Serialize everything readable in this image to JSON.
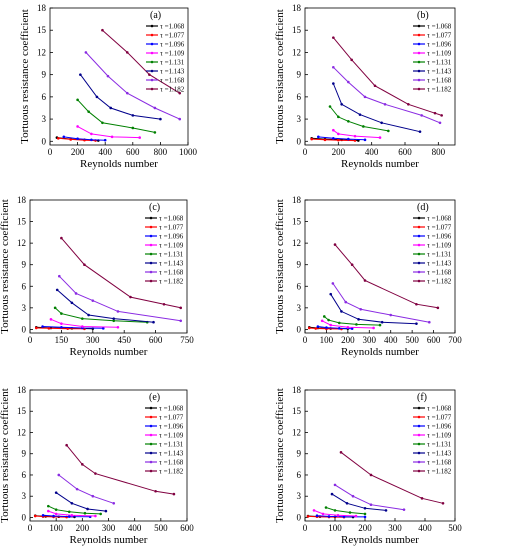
{
  "legend": {
    "prefix": "τ =",
    "series": [
      "1.068",
      "1.077",
      "1.096",
      "1.109",
      "1.131",
      "1.143",
      "1.168",
      "1.182"
    ],
    "colors": [
      "#000000",
      "#ff0000",
      "#0000ff",
      "#ff00ff",
      "#008000",
      "#00008b",
      "#8a2be2",
      "#800040"
    ]
  },
  "chart_data": [
    {
      "type": "line",
      "panel_label": "(a)",
      "xlabel": "Reynolds number",
      "ylabel": "Tortuous resistance coefficient",
      "xlim": [
        0,
        1000
      ],
      "ylim": [
        -0.5,
        18
      ],
      "xticks": [
        0,
        200,
        400,
        600,
        800,
        1000
      ],
      "yticks": [
        0,
        3,
        6,
        9,
        12,
        15,
        18
      ],
      "legend_position": "top-right",
      "series": [
        {
          "name": "τ =1.068",
          "color": "#000000",
          "x": [
            50,
            150,
            250,
            350
          ],
          "y": [
            0.5,
            0.3,
            0.2,
            0.1
          ]
        },
        {
          "name": "τ =1.077",
          "color": "#ff0000",
          "x": [
            60,
            150,
            250,
            330
          ],
          "y": [
            0.4,
            0.25,
            0.15,
            0.1
          ]
        },
        {
          "name": "τ =1.096",
          "color": "#0000ff",
          "x": [
            100,
            200,
            300,
            400
          ],
          "y": [
            0.6,
            0.35,
            0.2,
            0.15
          ]
        },
        {
          "name": "τ =1.109",
          "color": "#ff00ff",
          "x": [
            200,
            300,
            450,
            650
          ],
          "y": [
            2.0,
            1.0,
            0.6,
            0.5
          ]
        },
        {
          "name": "τ =1.131",
          "color": "#008000",
          "x": [
            200,
            280,
            380,
            600,
            760
          ],
          "y": [
            5.6,
            4.0,
            2.5,
            1.8,
            1.2
          ]
        },
        {
          "name": "τ =1.143",
          "color": "#00008b",
          "x": [
            220,
            340,
            440,
            600,
            800
          ],
          "y": [
            9.0,
            6.0,
            4.5,
            3.5,
            3.0
          ]
        },
        {
          "name": "τ =1.168",
          "color": "#8a2be2",
          "x": [
            260,
            420,
            560,
            760,
            940
          ],
          "y": [
            12.0,
            8.8,
            6.5,
            4.5,
            3.0
          ]
        },
        {
          "name": "τ =1.182",
          "color": "#800040",
          "x": [
            380,
            560,
            720,
            940
          ],
          "y": [
            15.0,
            12.0,
            9.0,
            6.5
          ]
        }
      ]
    },
    {
      "type": "line",
      "panel_label": "(b)",
      "xlabel": "Reynolds number",
      "ylabel": "Tortuous resistance coefficient",
      "xlim": [
        0,
        900
      ],
      "ylim": [
        -0.5,
        18
      ],
      "xticks": [
        0,
        200,
        400,
        600,
        800
      ],
      "yticks": [
        0,
        3,
        6,
        9,
        12,
        15,
        18
      ],
      "legend_position": "top-right",
      "series": [
        {
          "name": "τ =1.068",
          "color": "#000000",
          "x": [
            40,
            120,
            220,
            320
          ],
          "y": [
            0.4,
            0.3,
            0.2,
            0.1
          ]
        },
        {
          "name": "τ =1.077",
          "color": "#ff0000",
          "x": [
            40,
            120,
            200,
            300
          ],
          "y": [
            0.3,
            0.2,
            0.15,
            0.1
          ]
        },
        {
          "name": "τ =1.096",
          "color": "#0000ff",
          "x": [
            80,
            170,
            260,
            360
          ],
          "y": [
            0.6,
            0.4,
            0.3,
            0.2
          ]
        },
        {
          "name": "τ =1.109",
          "color": "#ff00ff",
          "x": [
            170,
            200,
            300,
            450
          ],
          "y": [
            1.5,
            1.0,
            0.7,
            0.5
          ]
        },
        {
          "name": "τ =1.131",
          "color": "#008000",
          "x": [
            150,
            200,
            260,
            350,
            500
          ],
          "y": [
            4.7,
            3.3,
            2.7,
            2.0,
            1.4
          ]
        },
        {
          "name": "τ =1.143",
          "color": "#00008b",
          "x": [
            170,
            220,
            330,
            460,
            690
          ],
          "y": [
            7.8,
            5.0,
            3.6,
            2.5,
            1.3
          ]
        },
        {
          "name": "τ =1.168",
          "color": "#8a2be2",
          "x": [
            170,
            260,
            360,
            480,
            700,
            810
          ],
          "y": [
            10.0,
            8.0,
            6.0,
            5.0,
            3.5,
            2.5
          ]
        },
        {
          "name": "τ =1.182",
          "color": "#800040",
          "x": [
            170,
            280,
            420,
            620,
            780,
            820
          ],
          "y": [
            14.0,
            11.0,
            7.5,
            5.0,
            3.8,
            3.5
          ]
        }
      ]
    },
    {
      "type": "line",
      "panel_label": "(c)",
      "xlabel": "Reynolds number",
      "ylabel": "Tortuous resistance coefficient",
      "xlim": [
        0,
        750
      ],
      "ylim": [
        -0.5,
        18
      ],
      "xticks": [
        0,
        150,
        300,
        450,
        600,
        750
      ],
      "yticks": [
        0,
        3,
        6,
        9,
        12,
        15,
        18
      ],
      "legend_position": "top-right",
      "series": [
        {
          "name": "τ =1.068",
          "color": "#000000",
          "x": [
            30,
            100,
            200,
            300
          ],
          "y": [
            0.3,
            0.2,
            0.15,
            0.1
          ]
        },
        {
          "name": "τ =1.077",
          "color": "#ff0000",
          "x": [
            30,
            90,
            180,
            260
          ],
          "y": [
            0.2,
            0.15,
            0.1,
            0.08
          ]
        },
        {
          "name": "τ =1.096",
          "color": "#0000ff",
          "x": [
            60,
            150,
            250,
            350
          ],
          "y": [
            0.4,
            0.3,
            0.2,
            0.15
          ]
        },
        {
          "name": "τ =1.109",
          "color": "#ff00ff",
          "x": [
            100,
            150,
            250,
            420
          ],
          "y": [
            1.4,
            0.8,
            0.4,
            0.3
          ]
        },
        {
          "name": "τ =1.131",
          "color": "#008000",
          "x": [
            120,
            150,
            250,
            400,
            560
          ],
          "y": [
            3.0,
            2.2,
            1.5,
            1.2,
            1.0
          ]
        },
        {
          "name": "τ =1.143",
          "color": "#00008b",
          "x": [
            130,
            200,
            280,
            400,
            590
          ],
          "y": [
            5.5,
            3.7,
            2.0,
            1.5,
            1.0
          ]
        },
        {
          "name": "τ =1.168",
          "color": "#8a2be2",
          "x": [
            140,
            220,
            300,
            420,
            720
          ],
          "y": [
            7.4,
            5.0,
            4.0,
            2.5,
            1.2
          ]
        },
        {
          "name": "τ =1.182",
          "color": "#800040",
          "x": [
            150,
            260,
            480,
            640,
            720
          ],
          "y": [
            12.7,
            9.0,
            4.5,
            3.5,
            3.0
          ]
        }
      ]
    },
    {
      "type": "line",
      "panel_label": "(d)",
      "xlabel": "Reynolds number",
      "ylabel": "Tortuous resistance coefficient",
      "xlim": [
        0,
        700
      ],
      "ylim": [
        -0.5,
        18
      ],
      "xticks": [
        0,
        100,
        200,
        300,
        400,
        500,
        600,
        700
      ],
      "yticks": [
        0,
        3,
        6,
        9,
        12,
        15,
        18
      ],
      "legend_position": "top-right",
      "series": [
        {
          "name": "τ =1.068",
          "color": "#000000",
          "x": [
            20,
            60,
            120,
            200
          ],
          "y": [
            0.3,
            0.2,
            0.12,
            0.1
          ]
        },
        {
          "name": "τ =1.077",
          "color": "#ff0000",
          "x": [
            20,
            50,
            100,
            170
          ],
          "y": [
            0.2,
            0.12,
            0.08,
            0.05
          ]
        },
        {
          "name": "τ =1.096",
          "color": "#0000ff",
          "x": [
            60,
            100,
            160,
            220
          ],
          "y": [
            0.4,
            0.25,
            0.15,
            0.1
          ]
        },
        {
          "name": "τ =1.109",
          "color": "#ff00ff",
          "x": [
            80,
            120,
            200,
            320
          ],
          "y": [
            1.2,
            0.6,
            0.3,
            0.2
          ]
        },
        {
          "name": "τ =1.131",
          "color": "#008000",
          "x": [
            90,
            110,
            160,
            240,
            350
          ],
          "y": [
            1.8,
            1.3,
            0.9,
            0.7,
            0.6
          ]
        },
        {
          "name": "τ =1.143",
          "color": "#00008b",
          "x": [
            120,
            170,
            250,
            360,
            520
          ],
          "y": [
            4.9,
            2.5,
            1.4,
            1.0,
            0.8
          ]
        },
        {
          "name": "τ =1.168",
          "color": "#8a2be2",
          "x": [
            130,
            190,
            260,
            400,
            580
          ],
          "y": [
            6.4,
            3.8,
            2.8,
            2.0,
            1.0
          ]
        },
        {
          "name": "τ =1.182",
          "color": "#800040",
          "x": [
            140,
            220,
            280,
            520,
            620
          ],
          "y": [
            11.8,
            9.0,
            6.8,
            3.5,
            3.0
          ]
        }
      ]
    },
    {
      "type": "line",
      "panel_label": "(e)",
      "xlabel": "Reynolds number",
      "ylabel": "Tortuous resistance coefficient",
      "xlim": [
        0,
        600
      ],
      "ylim": [
        -0.5,
        18
      ],
      "xticks": [
        0,
        100,
        200,
        300,
        400,
        500,
        600
      ],
      "yticks": [
        0,
        3,
        6,
        9,
        12,
        15,
        18
      ],
      "legend_position": "top-right",
      "series": [
        {
          "name": "τ =1.068",
          "color": "#000000",
          "x": [
            20,
            60,
            110,
            170
          ],
          "y": [
            0.25,
            0.15,
            0.1,
            0.08
          ]
        },
        {
          "name": "τ =1.077",
          "color": "#ff0000",
          "x": [
            20,
            50,
            90,
            140
          ],
          "y": [
            0.2,
            0.12,
            0.08,
            0.05
          ]
        },
        {
          "name": "τ =1.096",
          "color": "#0000ff",
          "x": [
            50,
            90,
            150,
            230
          ],
          "y": [
            0.3,
            0.2,
            0.12,
            0.1
          ]
        },
        {
          "name": "τ =1.109",
          "color": "#ff00ff",
          "x": [
            70,
            100,
            160,
            250
          ],
          "y": [
            0.9,
            0.5,
            0.3,
            0.2
          ]
        },
        {
          "name": "τ =1.131",
          "color": "#008000",
          "x": [
            70,
            100,
            150,
            210,
            270
          ],
          "y": [
            1.6,
            1.1,
            0.8,
            0.6,
            0.5
          ]
        },
        {
          "name": "τ =1.143",
          "color": "#00008b",
          "x": [
            100,
            160,
            220,
            290
          ],
          "y": [
            3.5,
            2.0,
            1.2,
            0.9
          ]
        },
        {
          "name": "τ =1.168",
          "color": "#8a2be2",
          "x": [
            110,
            180,
            240,
            320
          ],
          "y": [
            6.0,
            4.0,
            3.0,
            2.0
          ]
        },
        {
          "name": "τ =1.182",
          "color": "#800040",
          "x": [
            140,
            200,
            250,
            480,
            550
          ],
          "y": [
            10.2,
            7.5,
            6.2,
            3.7,
            3.3
          ]
        }
      ]
    },
    {
      "type": "line",
      "panel_label": "(f)",
      "xlabel": "Reynolds number",
      "ylabel": "Tortuous resistance coefficient",
      "xlim": [
        0,
        500
      ],
      "ylim": [
        -0.5,
        18
      ],
      "xticks": [
        0,
        100,
        200,
        300,
        400,
        500
      ],
      "yticks": [
        0,
        3,
        6,
        9,
        12,
        15,
        18
      ],
      "legend_position": "top-right",
      "series": [
        {
          "name": "τ =1.068",
          "color": "#000000",
          "x": [
            10,
            50,
            100,
            160
          ],
          "y": [
            0.2,
            0.12,
            0.08,
            0.06
          ]
        },
        {
          "name": "τ =1.077",
          "color": "#ff0000",
          "x": [
            10,
            40,
            80,
            130
          ],
          "y": [
            0.15,
            0.1,
            0.06,
            0.04
          ]
        },
        {
          "name": "τ =1.096",
          "color": "#0000ff",
          "x": [
            40,
            80,
            130,
            200
          ],
          "y": [
            0.25,
            0.15,
            0.1,
            0.08
          ]
        },
        {
          "name": "τ =1.109",
          "color": "#ff00ff",
          "x": [
            30,
            60,
            110,
            170
          ],
          "y": [
            1.0,
            0.5,
            0.3,
            0.2
          ]
        },
        {
          "name": "τ =1.131",
          "color": "#008000",
          "x": [
            70,
            100,
            150,
            200
          ],
          "y": [
            1.4,
            1.0,
            0.7,
            0.5
          ]
        },
        {
          "name": "τ =1.143",
          "color": "#00008b",
          "x": [
            90,
            140,
            200,
            270
          ],
          "y": [
            3.3,
            2.0,
            1.3,
            1.0
          ]
        },
        {
          "name": "τ =1.168",
          "color": "#8a2be2",
          "x": [
            100,
            160,
            220,
            330
          ],
          "y": [
            4.6,
            3.0,
            1.8,
            1.1
          ]
        },
        {
          "name": "τ =1.182",
          "color": "#800040",
          "x": [
            120,
            220,
            390,
            460
          ],
          "y": [
            9.2,
            6.0,
            2.7,
            2.0
          ]
        }
      ]
    }
  ]
}
